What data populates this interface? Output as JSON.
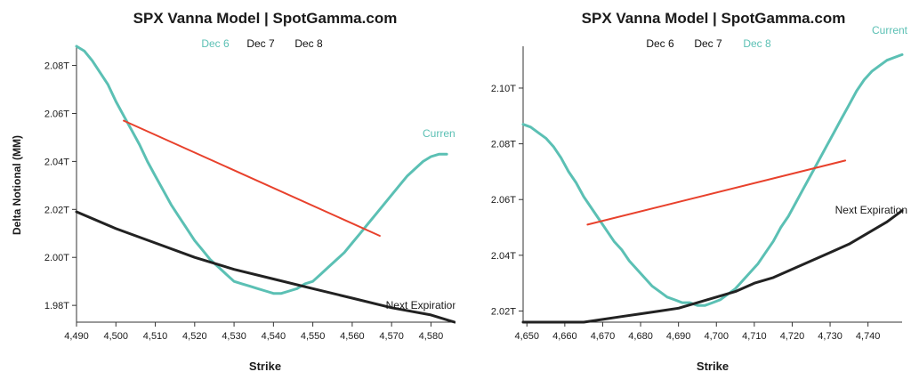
{
  "charts": [
    {
      "title": "SPX Vanna Model | SpotGamma.com",
      "legend": [
        {
          "label": "Dec 6",
          "color": "#5bc0b4"
        },
        {
          "label": "Dec 7",
          "color": "#111111"
        },
        {
          "label": "Dec 8",
          "color": "#111111"
        }
      ],
      "ylabel": "Delta Notional (MM)",
      "xlabel": "Strike"
    },
    {
      "title": "SPX Vanna Model | SpotGamma.com",
      "legend": [
        {
          "label": "Dec 6",
          "color": "#111111"
        },
        {
          "label": "Dec 7",
          "color": "#111111"
        },
        {
          "label": "Dec 8",
          "color": "#5bc0b4"
        }
      ],
      "ylabel": "",
      "xlabel": "Strike"
    }
  ],
  "colors": {
    "current": "#5bc0b4",
    "next": "#222222",
    "trend": "#e8412c"
  },
  "chart_data": [
    {
      "type": "line",
      "title": "SPX Vanna Model | SpotGamma.com",
      "xlabel": "Strike",
      "ylabel": "Delta Notional (MM)",
      "xlim": [
        4490,
        4586
      ],
      "ylim": [
        1.973,
        2.088
      ],
      "xticks": [
        4490,
        4500,
        4510,
        4520,
        4530,
        4540,
        4550,
        4560,
        4570,
        4580
      ],
      "xtick_labels": [
        "4,490",
        "4,500",
        "4,510",
        "4,520",
        "4,530",
        "4,540",
        "4,550",
        "4,560",
        "4,570",
        "4,580"
      ],
      "yticks": [
        1.98,
        2.0,
        2.02,
        2.04,
        2.06,
        2.08
      ],
      "ytick_labels": [
        "1.98T",
        "2.00T",
        "2.02T",
        "2.04T",
        "2.06T",
        "2.08T"
      ],
      "series": [
        {
          "name": "Current",
          "color": "#5bc0b4",
          "x": [
            4490,
            4492,
            4494,
            4496,
            4498,
            4500,
            4502,
            4504,
            4506,
            4508,
            4510,
            4512,
            4514,
            4516,
            4518,
            4520,
            4522,
            4524,
            4526,
            4528,
            4530,
            4532,
            4534,
            4536,
            4538,
            4540,
            4542,
            4544,
            4546,
            4548,
            4550,
            4552,
            4554,
            4556,
            4558,
            4560,
            4562,
            4564,
            4566,
            4568,
            4570,
            4572,
            4574,
            4576,
            4578,
            4580,
            4582,
            4584
          ],
          "y": [
            2.088,
            2.086,
            2.082,
            2.077,
            2.072,
            2.065,
            2.059,
            2.053,
            2.047,
            2.04,
            2.034,
            2.028,
            2.022,
            2.017,
            2.012,
            2.007,
            2.003,
            1.999,
            1.996,
            1.993,
            1.99,
            1.989,
            1.988,
            1.987,
            1.986,
            1.985,
            1.985,
            1.986,
            1.987,
            1.989,
            1.99,
            1.993,
            1.996,
            1.999,
            2.002,
            2.006,
            2.01,
            2.014,
            2.018,
            2.022,
            2.026,
            2.03,
            2.034,
            2.037,
            2.04,
            2.042,
            2.043,
            2.043
          ]
        },
        {
          "name": "Next Expiration",
          "color": "#222222",
          "x": [
            4490,
            4500,
            4510,
            4520,
            4530,
            4540,
            4550,
            4560,
            4570,
            4580,
            4586
          ],
          "y": [
            2.019,
            2.012,
            2.006,
            2.0,
            1.995,
            1.991,
            1.987,
            1.983,
            1.979,
            1.976,
            1.973
          ]
        },
        {
          "name": "",
          "color": "#e8412c",
          "x": [
            4502,
            4567
          ],
          "y": [
            2.057,
            2.009
          ]
        }
      ]
    },
    {
      "type": "line",
      "title": "SPX Vanna Model | SpotGamma.com",
      "xlabel": "Strike",
      "ylabel": "",
      "xlim": [
        4649,
        4749
      ],
      "ylim": [
        2.016,
        2.115
      ],
      "xticks": [
        4650,
        4660,
        4670,
        4680,
        4690,
        4700,
        4710,
        4720,
        4730,
        4740
      ],
      "xtick_labels": [
        "4,650",
        "4,660",
        "4,670",
        "4,680",
        "4,690",
        "4,700",
        "4,710",
        "4,720",
        "4,730",
        "4,740"
      ],
      "yticks": [
        2.02,
        2.04,
        2.06,
        2.08,
        2.1
      ],
      "ytick_labels": [
        "2.02T",
        "2.04T",
        "2.06T",
        "2.08T",
        "2.10T"
      ],
      "series": [
        {
          "name": "Current",
          "color": "#5bc0b4",
          "x": [
            4649,
            4651,
            4653,
            4655,
            4657,
            4659,
            4661,
            4663,
            4665,
            4667,
            4669,
            4671,
            4673,
            4675,
            4677,
            4679,
            4681,
            4683,
            4685,
            4687,
            4689,
            4691,
            4693,
            4695,
            4697,
            4699,
            4701,
            4703,
            4705,
            4707,
            4709,
            4711,
            4713,
            4715,
            4717,
            4719,
            4721,
            4723,
            4725,
            4727,
            4729,
            4731,
            4733,
            4735,
            4737,
            4739,
            4741,
            4743,
            4745,
            4747,
            4749
          ],
          "y": [
            2.087,
            2.086,
            2.084,
            2.082,
            2.079,
            2.075,
            2.07,
            2.066,
            2.061,
            2.057,
            2.053,
            2.049,
            2.045,
            2.042,
            2.038,
            2.035,
            2.032,
            2.029,
            2.027,
            2.025,
            2.024,
            2.023,
            2.023,
            2.022,
            2.022,
            2.023,
            2.024,
            2.026,
            2.028,
            2.031,
            2.034,
            2.037,
            2.041,
            2.045,
            2.05,
            2.054,
            2.059,
            2.064,
            2.069,
            2.074,
            2.079,
            2.084,
            2.089,
            2.094,
            2.099,
            2.103,
            2.106,
            2.108,
            2.11,
            2.111,
            2.112
          ]
        },
        {
          "name": "Next Expiration",
          "color": "#222222",
          "x": [
            4649,
            4655,
            4660,
            4665,
            4670,
            4675,
            4680,
            4685,
            4690,
            4695,
            4700,
            4705,
            4710,
            4715,
            4720,
            4725,
            4730,
            4735,
            4740,
            4745,
            4749
          ],
          "y": [
            2.016,
            2.016,
            2.016,
            2.016,
            2.017,
            2.018,
            2.019,
            2.02,
            2.021,
            2.023,
            2.025,
            2.027,
            2.03,
            2.032,
            2.035,
            2.038,
            2.041,
            2.044,
            2.048,
            2.052,
            2.056
          ]
        },
        {
          "name": "",
          "color": "#e8412c",
          "x": [
            4666,
            4734
          ],
          "y": [
            2.051,
            2.074
          ]
        }
      ]
    }
  ]
}
